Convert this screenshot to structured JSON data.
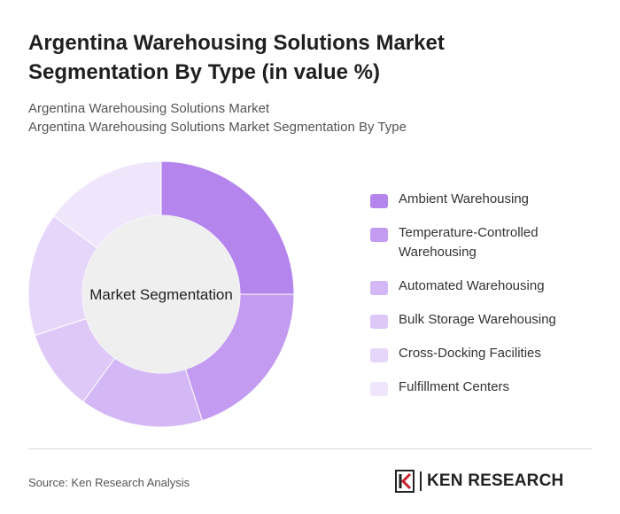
{
  "title": "Argentina Warehousing Solutions Market Segmentation By Type (in value %)",
  "subtitle_line1": "Argentina Warehousing Solutions Market",
  "subtitle_line2": "Argentina Warehousing Solutions Market Segmentation By Type",
  "source": "Source: Ken Research Analysis",
  "logo_text": "KEN RESEARCH",
  "chart_data": {
    "type": "pie",
    "center_label": "Market Segmentation",
    "categories": [
      "Ambient Warehousing",
      "Temperature-Controlled Warehousing",
      "Automated Warehousing",
      "Bulk Storage Warehousing",
      "Cross-Docking Facilities",
      "Fulfillment Centers"
    ],
    "values": [
      25,
      20,
      15,
      10,
      15,
      15
    ],
    "colors": [
      "#b585ee",
      "#c39cf1",
      "#d3b8f5",
      "#ddc8f7",
      "#e6d7fa",
      "#efe6fc"
    ],
    "legend_position": "right"
  }
}
